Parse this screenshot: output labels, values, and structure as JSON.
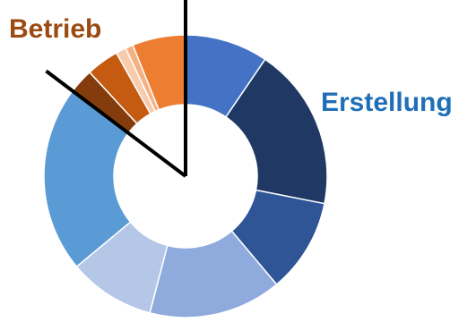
{
  "chart_data": {
    "type": "pie",
    "variant": "donut",
    "legend": "none",
    "group_labels": [
      {
        "text": "Betrieb",
        "color": "#9A4A12"
      },
      {
        "text": "Erstellung",
        "color": "#1F6FB8"
      }
    ],
    "slices": [
      {
        "group": "Erstellung",
        "value": 9.7,
        "color": "#4472C4"
      },
      {
        "group": "Erstellung",
        "value": 19.0,
        "color": "#203864"
      },
      {
        "group": "Erstellung",
        "value": 11.0,
        "color": "#2F5597"
      },
      {
        "group": "Erstellung",
        "value": 15.5,
        "color": "#8FAADC"
      },
      {
        "group": "Erstellung",
        "value": 10.1,
        "color": "#B4C7E7"
      },
      {
        "group": "Erstellung",
        "value": 21.8,
        "color": "#5B9BD5"
      },
      {
        "group": "Betrieb",
        "value": 2.9,
        "color": "#843C0C"
      },
      {
        "group": "Betrieb",
        "value": 3.8,
        "color": "#C55A11"
      },
      {
        "group": "Betrieb",
        "value": 1.2,
        "color": "#F8CBAD"
      },
      {
        "group": "Betrieb",
        "value": 0.9,
        "color": "#F4B183"
      },
      {
        "group": "Betrieb",
        "value": 6.2,
        "color": "#ED7D31"
      }
    ]
  }
}
